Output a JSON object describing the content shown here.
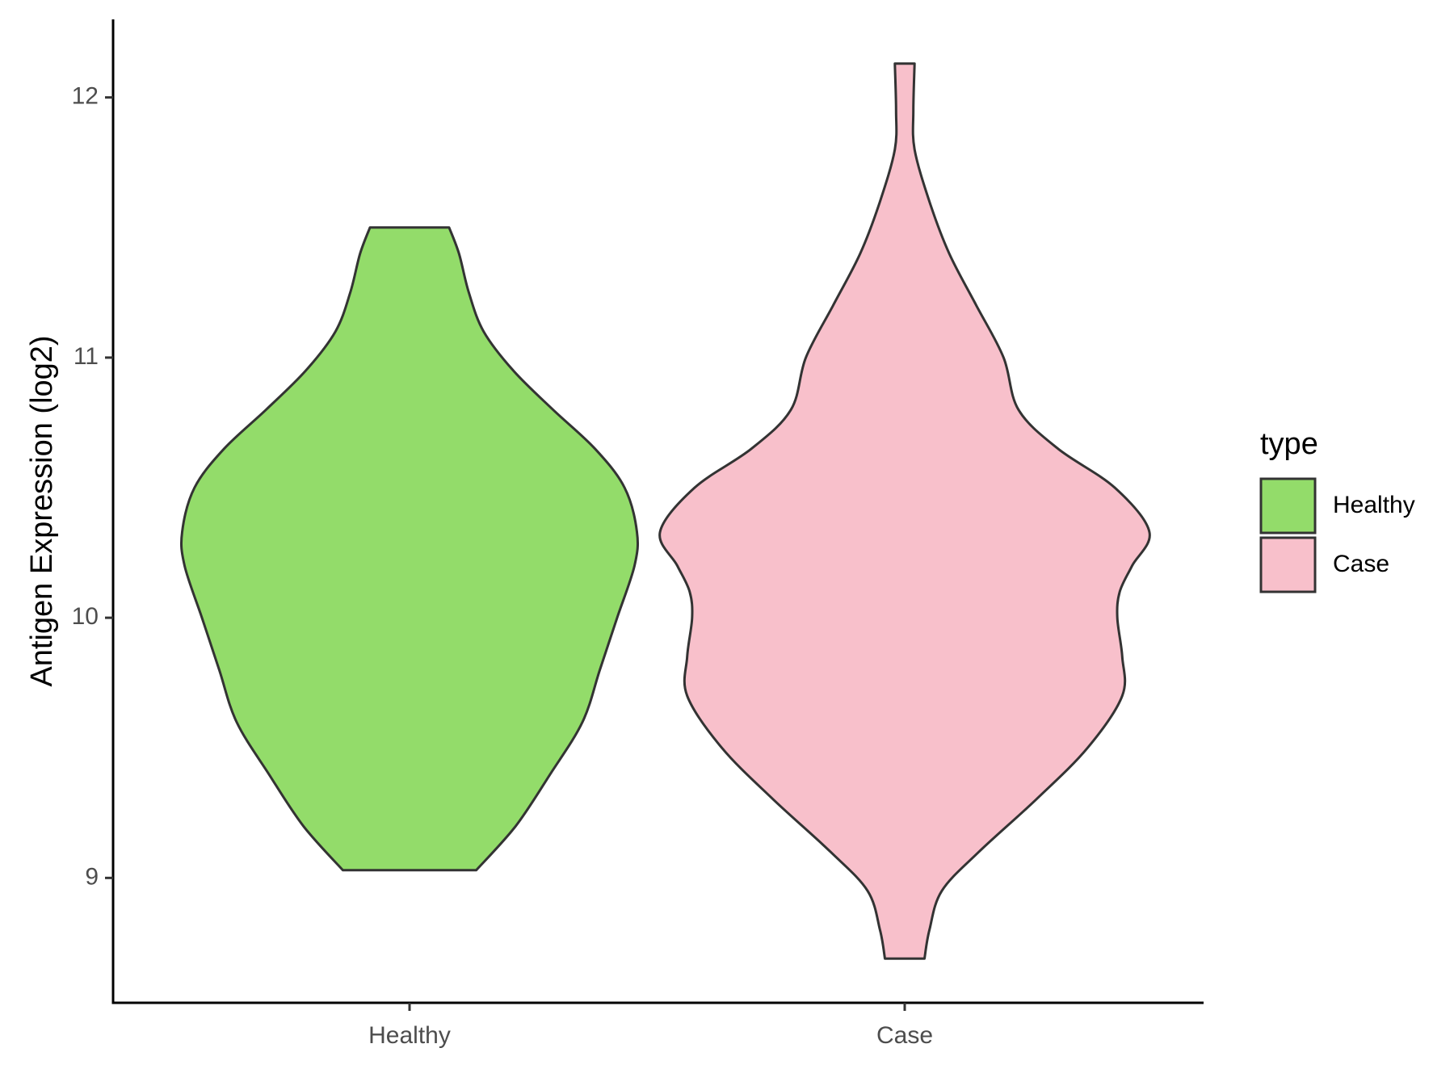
{
  "chart_data": {
    "type": "violin",
    "title": "",
    "xlabel": "",
    "ylabel": "Antigen Expression (log2)",
    "ylim": [
      8.52,
      12.3
    ],
    "yticks": [
      9,
      10,
      11,
      12
    ],
    "categories": [
      "Healthy",
      "Case"
    ],
    "legend": {
      "title": "type",
      "position": "right",
      "entries": [
        {
          "label": "Healthy",
          "color": "#93DC6A"
        },
        {
          "label": "Case",
          "color": "#F8C0CB"
        }
      ]
    },
    "grid": false,
    "series": [
      {
        "category": "Healthy",
        "color": "#93DC6A",
        "min": 9.03,
        "max": 11.5,
        "density_profile": [
          [
            9.03,
            0.27
          ],
          [
            9.2,
            0.43
          ],
          [
            9.4,
            0.57
          ],
          [
            9.6,
            0.7
          ],
          [
            9.8,
            0.77
          ],
          [
            10.0,
            0.84
          ],
          [
            10.2,
            0.91
          ],
          [
            10.33,
            0.92
          ],
          [
            10.5,
            0.87
          ],
          [
            10.65,
            0.75
          ],
          [
            10.8,
            0.58
          ],
          [
            10.95,
            0.42
          ],
          [
            11.1,
            0.3
          ],
          [
            11.25,
            0.24
          ],
          [
            11.4,
            0.2
          ],
          [
            11.5,
            0.16
          ]
        ]
      },
      {
        "category": "Case",
        "color": "#F8C0CB",
        "min": 8.69,
        "max": 12.13,
        "density_profile": [
          [
            8.69,
            0.08
          ],
          [
            8.8,
            0.1
          ],
          [
            8.95,
            0.15
          ],
          [
            9.1,
            0.3
          ],
          [
            9.3,
            0.53
          ],
          [
            9.5,
            0.74
          ],
          [
            9.7,
            0.88
          ],
          [
            9.85,
            0.88
          ],
          [
            10.0,
            0.86
          ],
          [
            10.1,
            0.87
          ],
          [
            10.2,
            0.92
          ],
          [
            10.33,
            0.99
          ],
          [
            10.5,
            0.85
          ],
          [
            10.65,
            0.62
          ],
          [
            10.8,
            0.46
          ],
          [
            11.0,
            0.4
          ],
          [
            11.2,
            0.29
          ],
          [
            11.4,
            0.18
          ],
          [
            11.6,
            0.1
          ],
          [
            11.8,
            0.04
          ],
          [
            11.95,
            0.035
          ],
          [
            12.13,
            0.04
          ]
        ]
      }
    ]
  }
}
